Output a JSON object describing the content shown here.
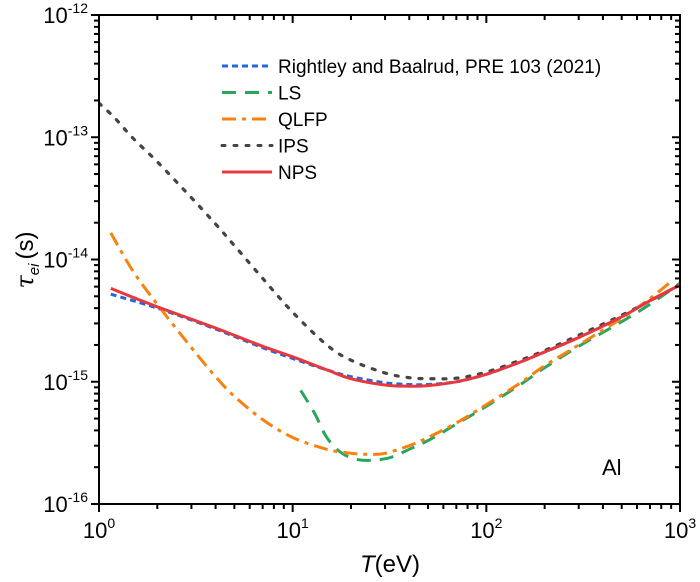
{
  "chart_data": {
    "type": "line",
    "title": "",
    "xlabel": "T(eV)",
    "xlabel_italic_part": "T",
    "xlabel_rest": "(eV)",
    "ylabel_symbol": "τ",
    "ylabel_subscript": "ei",
    "ylabel_units": "(s)",
    "xscale": "log",
    "yscale": "log",
    "xlim": [
      1,
      1000
    ],
    "ylim": [
      1e-16,
      1e-12
    ],
    "xticks": [
      {
        "value": 1,
        "base": "10",
        "exp": "0"
      },
      {
        "value": 10,
        "base": "10",
        "exp": "1"
      },
      {
        "value": 100,
        "base": "10",
        "exp": "2"
      },
      {
        "value": 1000,
        "base": "10",
        "exp": "3"
      }
    ],
    "yticks": [
      {
        "value": 1e-16,
        "base": "10",
        "exp": "-16"
      },
      {
        "value": 1e-15,
        "base": "10",
        "exp": "-15"
      },
      {
        "value": 1e-14,
        "base": "10",
        "exp": "-14"
      },
      {
        "value": 1e-13,
        "base": "10",
        "exp": "-13"
      },
      {
        "value": 1e-12,
        "base": "10",
        "exp": "-12"
      }
    ],
    "grid": false,
    "legend_position": "top-center",
    "annotation": "Al",
    "series": [
      {
        "name": "Rightley and Baalrud, PRE 103 (2021)",
        "color": "#1f66e0",
        "style": "short-dash",
        "x": [
          1.15,
          1.5,
          2,
          3,
          4,
          5,
          7,
          10,
          15,
          20,
          30,
          40,
          50,
          70,
          100,
          150,
          200,
          300,
          500,
          700,
          1000
        ],
        "y": [
          5.2e-15,
          4.6e-15,
          4e-15,
          3.2e-15,
          2.7e-15,
          2.35e-15,
          1.9e-15,
          1.55e-15,
          1.25e-15,
          1.1e-15,
          9.8e-16,
          9.5e-16,
          9.5e-16,
          1e-15,
          1.15e-15,
          1.45e-15,
          1.75e-15,
          2.3e-15,
          3.4e-15,
          4.6e-15,
          6.2e-15
        ]
      },
      {
        "name": "LS",
        "color": "#2aa55e",
        "style": "long-dash",
        "x": [
          11,
          13,
          15,
          18,
          22,
          27,
          32,
          40,
          50,
          70,
          100,
          150,
          200,
          300,
          500,
          700,
          1000
        ],
        "y": [
          8.5e-16,
          5.5e-16,
          3.5e-16,
          2.6e-16,
          2.3e-16,
          2.3e-16,
          2.4e-16,
          2.8e-16,
          3.3e-16,
          4.5e-16,
          6.3e-16,
          9.5e-16,
          1.3e-15,
          1.95e-15,
          3.1e-15,
          4.3e-15,
          6.4e-15
        ]
      },
      {
        "name": "QLFP",
        "color": "#f7820f",
        "style": "dash-dot",
        "x": [
          1.15,
          1.5,
          2,
          3,
          4,
          5,
          7,
          10,
          15,
          20,
          25,
          30,
          40,
          50,
          70,
          100,
          150,
          200,
          300,
          500,
          700,
          900
        ],
        "y": [
          1.65e-14,
          8e-15,
          4.3e-15,
          1.9e-15,
          1.1e-15,
          7.6e-16,
          4.9e-16,
          3.5e-16,
          2.8e-16,
          2.6e-16,
          2.55e-16,
          2.6e-16,
          3e-16,
          3.5e-16,
          4.6e-16,
          6.5e-16,
          9.8e-16,
          1.35e-15,
          2e-15,
          3.3e-15,
          4.8e-15,
          6.6e-15
        ]
      },
      {
        "name": "IPS",
        "color": "#444444",
        "style": "dotted",
        "x": [
          1.0,
          1.2,
          1.5,
          2,
          3,
          4,
          5,
          7,
          10,
          15,
          20,
          30,
          40,
          50,
          70,
          100,
          150,
          200,
          300,
          500,
          700,
          1000
        ],
        "y": [
          1.9e-13,
          1.45e-13,
          9.8e-14,
          6.3e-14,
          3.2e-14,
          1.95e-14,
          1.3e-14,
          7e-15,
          3.7e-15,
          2e-15,
          1.5e-15,
          1.18e-15,
          1.08e-15,
          1.06e-15,
          1.07e-15,
          1.2e-15,
          1.5e-15,
          1.8e-15,
          2.4e-15,
          3.5e-15,
          4.6e-15,
          6.2e-15
        ]
      },
      {
        "name": "NPS",
        "color": "#e8383d",
        "style": "solid",
        "x": [
          1.15,
          1.5,
          2,
          3,
          4,
          5,
          7,
          10,
          15,
          20,
          30,
          40,
          50,
          70,
          100,
          150,
          200,
          300,
          500,
          700,
          1000
        ],
        "y": [
          5.8e-15,
          4.9e-15,
          4.1e-15,
          3.25e-15,
          2.75e-15,
          2.4e-15,
          1.95e-15,
          1.6e-15,
          1.25e-15,
          1.06e-15,
          9.4e-16,
          9.2e-16,
          9.3e-16,
          1e-15,
          1.15e-15,
          1.45e-15,
          1.75e-15,
          2.3e-15,
          3.4e-15,
          4.6e-15,
          6.2e-15
        ]
      }
    ]
  }
}
